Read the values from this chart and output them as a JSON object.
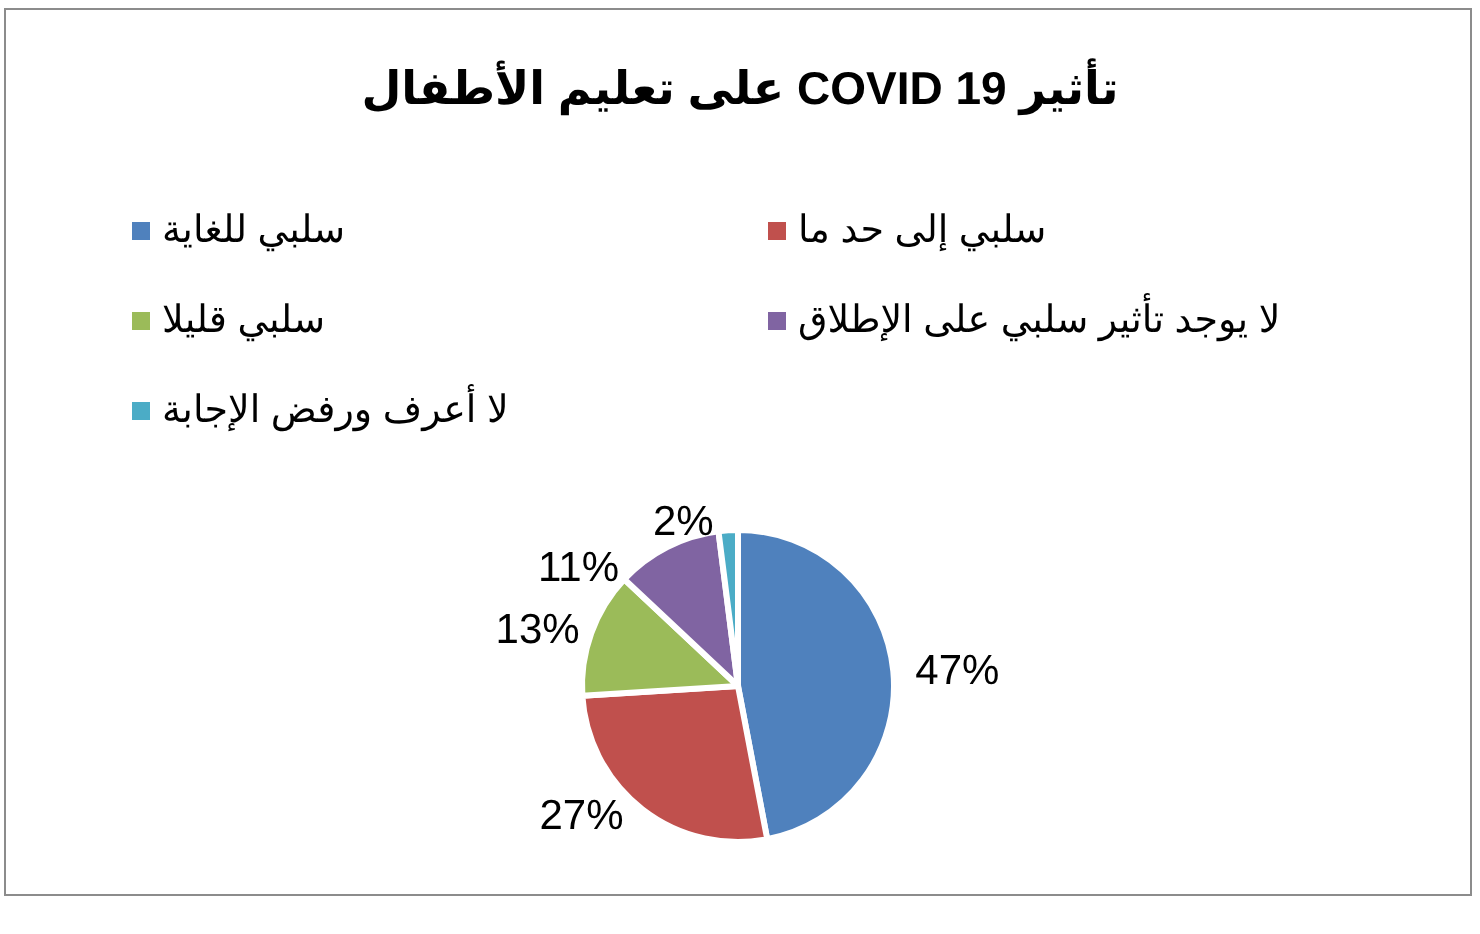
{
  "chart_data": {
    "type": "pie",
    "title": "تأثير COVID 19 على تعليم الأطفال",
    "categories": [
      "سلبي للغاية",
      "سلبي إلى حد ما",
      "سلبي قليلا",
      "لا يوجد تأثير سلبي على الإطلاق",
      "لا أعرف ورفض الإجابة"
    ],
    "values": [
      47,
      27,
      13,
      11,
      2
    ],
    "colors": [
      "#4f81bd",
      "#c0504d",
      "#9bbb59",
      "#8064a2",
      "#4bacc6"
    ],
    "value_labels": [
      "47%",
      "27%",
      "13%",
      "11%",
      "2%"
    ],
    "legend": "top"
  }
}
